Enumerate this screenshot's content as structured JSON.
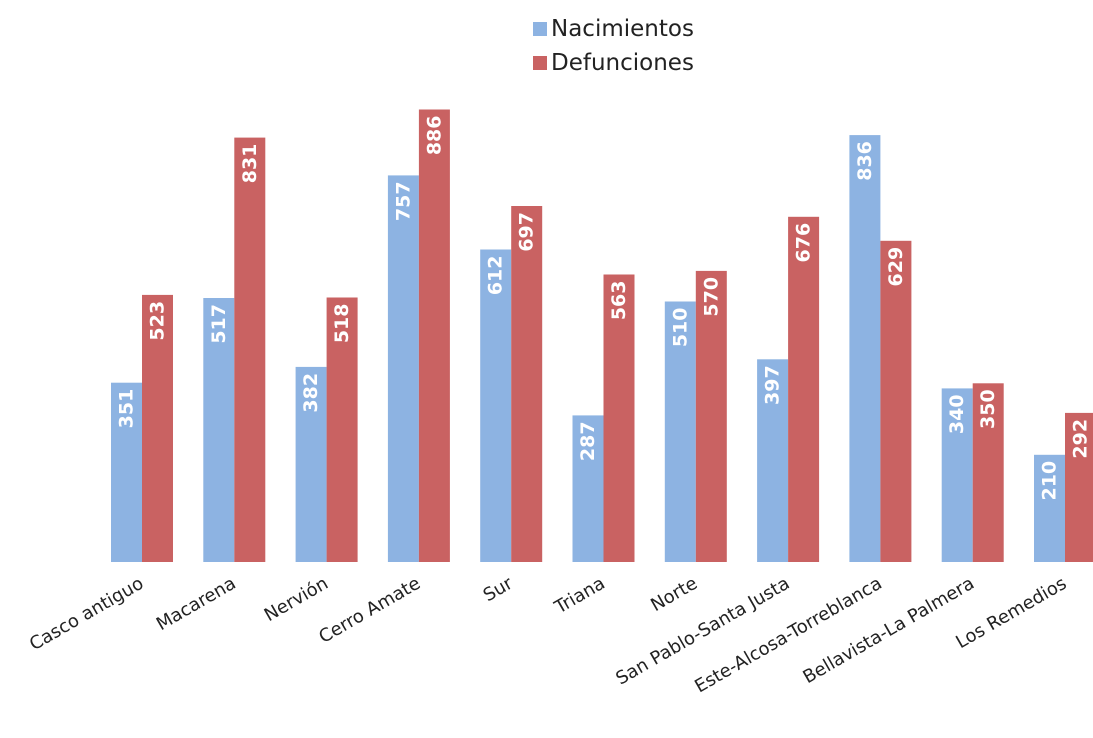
{
  "chart_data": {
    "type": "bar",
    "categories": [
      "Casco antiguo",
      "Macarena",
      "Nervión",
      "Cerro Amate",
      "Sur",
      "Triana",
      "Norte",
      "San Pablo-Santa Justa",
      "Este-Alcosa-Torreblanca",
      "Bellavista-La Palmera",
      "Los Remedios"
    ],
    "series": [
      {
        "name": "Nacimientos",
        "color": "#8db3e2",
        "values": [
          351,
          517,
          382,
          757,
          612,
          287,
          510,
          397,
          836,
          340,
          210
        ]
      },
      {
        "name": "Defunciones",
        "color": "#c96262",
        "values": [
          523,
          831,
          518,
          886,
          697,
          563,
          570,
          676,
          629,
          350,
          292
        ]
      }
    ],
    "title": "",
    "xlabel": "",
    "ylabel": "",
    "ylim": [
      0,
      900
    ],
    "grid": false,
    "legend_position": "top-center",
    "data_labels": "inside-rotated"
  }
}
